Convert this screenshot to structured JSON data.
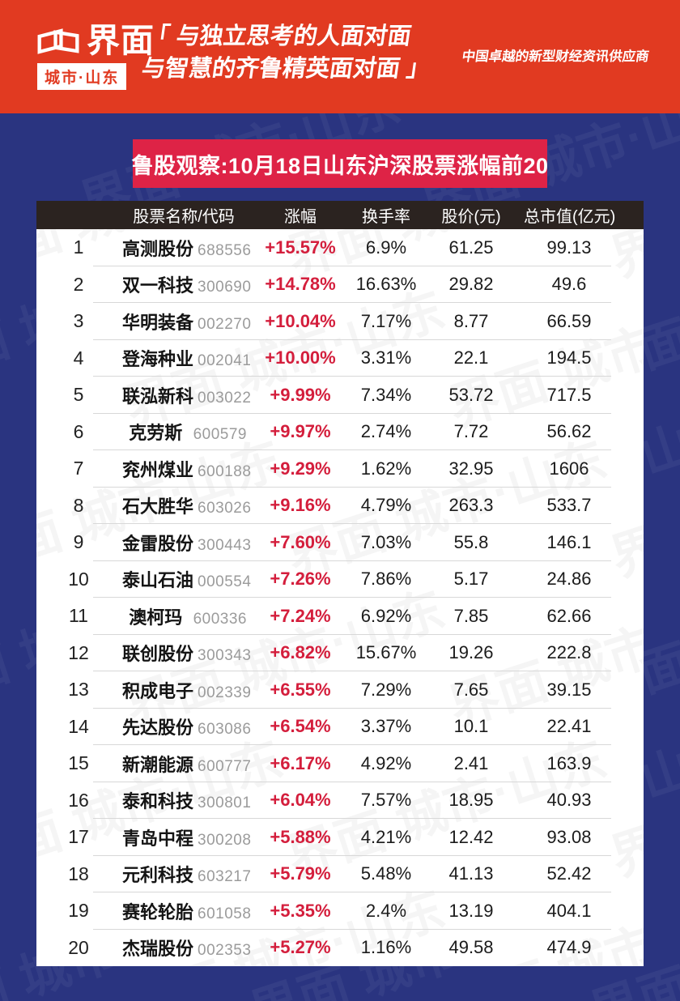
{
  "brand": {
    "logo_text": "界面",
    "logo_sub": "城市·山东",
    "slogan_line1": "「 与独立思考的人面对面",
    "slogan_line2": "与智慧的齐鲁精英面对面 」",
    "tagline": "中国卓越的新型财经资讯供应商",
    "watermark": "界面 城市·山东"
  },
  "banner": {
    "title": "鲁股观察:10月18日山东沪深股票涨幅前20"
  },
  "colors": {
    "header_red": "#E13A21",
    "banner_red": "#DE2346",
    "background_navy": "#2A3480",
    "table_header_dark": "#2B2320",
    "change_red": "#D41E3C",
    "code_gray": "#9B9B9B"
  },
  "chart_data": {
    "type": "table",
    "title": "鲁股观察:10月18日山东沪深股票涨幅前20",
    "columns": [
      "股票名称/代码",
      "涨幅",
      "换手率",
      "股价(元)",
      "总市值(亿元)"
    ],
    "rows": [
      {
        "rank": "1",
        "name": "高测股份",
        "code": "688556",
        "change": "+15.57%",
        "turnover": "6.9%",
        "price": "61.25",
        "market_cap": "99.13"
      },
      {
        "rank": "2",
        "name": "双一科技",
        "code": "300690",
        "change": "+14.78%",
        "turnover": "16.63%",
        "price": "29.82",
        "market_cap": "49.6"
      },
      {
        "rank": "3",
        "name": "华明装备",
        "code": "002270",
        "change": "+10.04%",
        "turnover": "7.17%",
        "price": "8.77",
        "market_cap": "66.59"
      },
      {
        "rank": "4",
        "name": "登海种业",
        "code": "002041",
        "change": "+10.00%",
        "turnover": "3.31%",
        "price": "22.1",
        "market_cap": "194.5"
      },
      {
        "rank": "5",
        "name": "联泓新科",
        "code": "003022",
        "change": "+9.99%",
        "turnover": "7.34%",
        "price": "53.72",
        "market_cap": "717.5"
      },
      {
        "rank": "6",
        "name": "克劳斯",
        "code": "600579",
        "change": "+9.97%",
        "turnover": "2.74%",
        "price": "7.72",
        "market_cap": "56.62"
      },
      {
        "rank": "7",
        "name": "兖州煤业",
        "code": "600188",
        "change": "+9.29%",
        "turnover": "1.62%",
        "price": "32.95",
        "market_cap": "1606"
      },
      {
        "rank": "8",
        "name": "石大胜华",
        "code": "603026",
        "change": "+9.16%",
        "turnover": "4.79%",
        "price": "263.3",
        "market_cap": "533.7"
      },
      {
        "rank": "9",
        "name": "金雷股份",
        "code": "300443",
        "change": "+7.60%",
        "turnover": "7.03%",
        "price": "55.8",
        "market_cap": "146.1"
      },
      {
        "rank": "10",
        "name": "泰山石油",
        "code": "000554",
        "change": "+7.26%",
        "turnover": "7.86%",
        "price": "5.17",
        "market_cap": "24.86"
      },
      {
        "rank": "11",
        "name": "澳柯玛",
        "code": "600336",
        "change": "+7.24%",
        "turnover": "6.92%",
        "price": "7.85",
        "market_cap": "62.66"
      },
      {
        "rank": "12",
        "name": "联创股份",
        "code": "300343",
        "change": "+6.82%",
        "turnover": "15.67%",
        "price": "19.26",
        "market_cap": "222.8"
      },
      {
        "rank": "13",
        "name": "积成电子",
        "code": "002339",
        "change": "+6.55%",
        "turnover": "7.29%",
        "price": "7.65",
        "market_cap": "39.15"
      },
      {
        "rank": "14",
        "name": "先达股份",
        "code": "603086",
        "change": "+6.54%",
        "turnover": "3.37%",
        "price": "10.1",
        "market_cap": "22.41"
      },
      {
        "rank": "15",
        "name": "新潮能源",
        "code": "600777",
        "change": "+6.17%",
        "turnover": "4.92%",
        "price": "2.41",
        "market_cap": "163.9"
      },
      {
        "rank": "16",
        "name": "泰和科技",
        "code": "300801",
        "change": "+6.04%",
        "turnover": "7.57%",
        "price": "18.95",
        "market_cap": "40.93"
      },
      {
        "rank": "17",
        "name": "青岛中程",
        "code": "300208",
        "change": "+5.88%",
        "turnover": "4.21%",
        "price": "12.42",
        "market_cap": "93.08"
      },
      {
        "rank": "18",
        "name": "元利科技",
        "code": "603217",
        "change": "+5.79%",
        "turnover": "5.48%",
        "price": "41.13",
        "market_cap": "52.42"
      },
      {
        "rank": "19",
        "name": "赛轮轮胎",
        "code": "601058",
        "change": "+5.35%",
        "turnover": "2.4%",
        "price": "13.19",
        "market_cap": "404.1"
      },
      {
        "rank": "20",
        "name": "杰瑞股份",
        "code": "002353",
        "change": "+5.27%",
        "turnover": "1.16%",
        "price": "49.58",
        "market_cap": "474.9"
      }
    ]
  }
}
